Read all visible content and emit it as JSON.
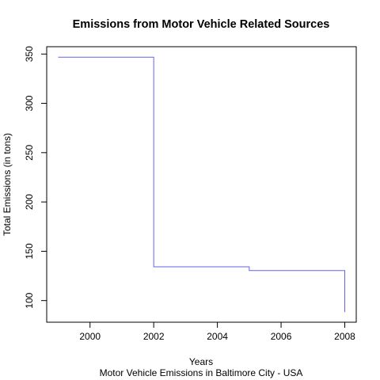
{
  "chart_data": {
    "type": "line",
    "step": "post",
    "title": "Emissions from Motor Vehicle Related Sources",
    "xlabel": "Years",
    "ylabel": "Total Emissions (in tons)",
    "subtitle": "Motor Vehicle Emissions in Baltimore City - USA",
    "xlim": [
      1999,
      2008
    ],
    "ylim": [
      88.5,
      347
    ],
    "xticks": [
      2000,
      2002,
      2004,
      2006,
      2008
    ],
    "yticks": [
      100,
      150,
      200,
      250,
      300,
      350
    ],
    "grid": false,
    "legend": "none",
    "series": [
      {
        "color": "#6464e6",
        "x": [
          1999,
          2002,
          2005,
          2008
        ],
        "y": [
          346.8,
          134.3,
          130.4,
          88.3
        ]
      }
    ]
  }
}
